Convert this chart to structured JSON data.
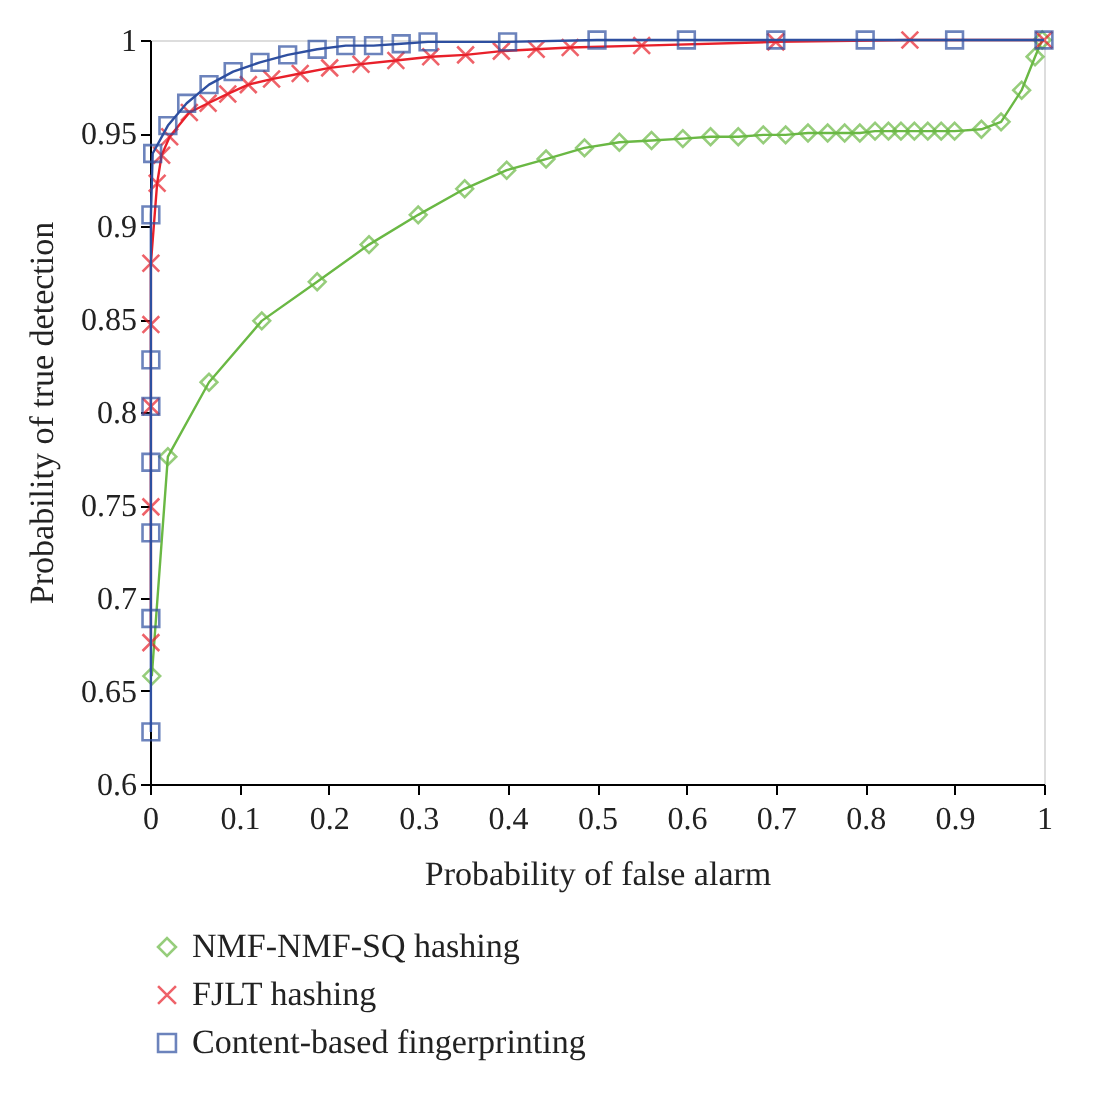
{
  "chart_data": {
    "type": "line",
    "xlabel": "Probability of false alarm",
    "ylabel": "Probability of true detection",
    "xlim": [
      0,
      1
    ],
    "ylim": [
      0.6,
      1
    ],
    "xticks": [
      0,
      0.1,
      0.2,
      0.3,
      0.4,
      0.5,
      0.6,
      0.7,
      0.8,
      0.9,
      1
    ],
    "yticks": [
      0.6,
      0.65,
      0.7,
      0.75,
      0.8,
      0.85,
      0.9,
      0.95,
      1
    ],
    "grid": false,
    "legend": "bottom",
    "line_style": "solid",
    "series": [
      {
        "name": "NMF-NMF-SQ hashing",
        "color": "#6ab844",
        "marker": "diamond",
        "x": [
          0.002,
          0.02,
          0.066,
          0.125,
          0.187,
          0.245,
          0.3,
          0.352,
          0.399,
          0.443,
          0.486,
          0.525,
          0.561,
          0.596,
          0.627,
          0.658,
          0.686,
          0.711,
          0.736,
          0.758,
          0.777,
          0.794,
          0.811,
          0.826,
          0.84,
          0.855,
          0.87,
          0.885,
          0.9,
          0.93,
          0.952,
          0.975,
          0.99,
          0.998
        ],
        "values": [
          0.658,
          0.776,
          0.816,
          0.849,
          0.87,
          0.89,
          0.906,
          0.92,
          0.93,
          0.936,
          0.942,
          0.945,
          0.946,
          0.947,
          0.948,
          0.948,
          0.949,
          0.949,
          0.95,
          0.95,
          0.95,
          0.95,
          0.951,
          0.951,
          0.951,
          0.951,
          0.951,
          0.951,
          0.951,
          0.952,
          0.956,
          0.973,
          0.991,
          1.0
        ]
      },
      {
        "name": "FJLT hashing",
        "color": "#e8202a",
        "marker": "cross",
        "x": [
          0.001,
          0.001,
          0.001,
          0.001,
          0.001,
          0.008,
          0.013,
          0.022,
          0.044,
          0.065,
          0.087,
          0.11,
          0.136,
          0.168,
          0.201,
          0.236,
          0.275,
          0.314,
          0.353,
          0.393,
          0.432,
          0.47,
          0.55,
          0.7,
          0.85,
          1.0
        ],
        "values": [
          0.676,
          0.749,
          0.803,
          0.847,
          0.88,
          0.923,
          0.938,
          0.948,
          0.961,
          0.966,
          0.971,
          0.976,
          0.979,
          0.982,
          0.985,
          0.987,
          0.989,
          0.991,
          0.992,
          0.994,
          0.995,
          0.996,
          0.997,
          0.999,
          1.0,
          1.0
        ]
      },
      {
        "name": "Content-based fingerprinting",
        "color": "#2e4fa0",
        "marker": "square",
        "x": [
          0.001,
          0.001,
          0.001,
          0.001,
          0.001,
          0.001,
          0.001,
          0.003,
          0.02,
          0.041,
          0.066,
          0.093,
          0.123,
          0.154,
          0.187,
          0.219,
          0.25,
          0.281,
          0.311,
          0.4,
          0.5,
          0.6,
          0.7,
          0.8,
          0.9,
          1.0
        ],
        "values": [
          0.628,
          0.689,
          0.735,
          0.773,
          0.803,
          0.828,
          0.906,
          0.939,
          0.954,
          0.966,
          0.976,
          0.983,
          0.988,
          0.992,
          0.995,
          0.997,
          0.997,
          0.998,
          0.999,
          0.999,
          1.0,
          1.0,
          1.0,
          1.0,
          1.0,
          1.0
        ]
      }
    ]
  }
}
